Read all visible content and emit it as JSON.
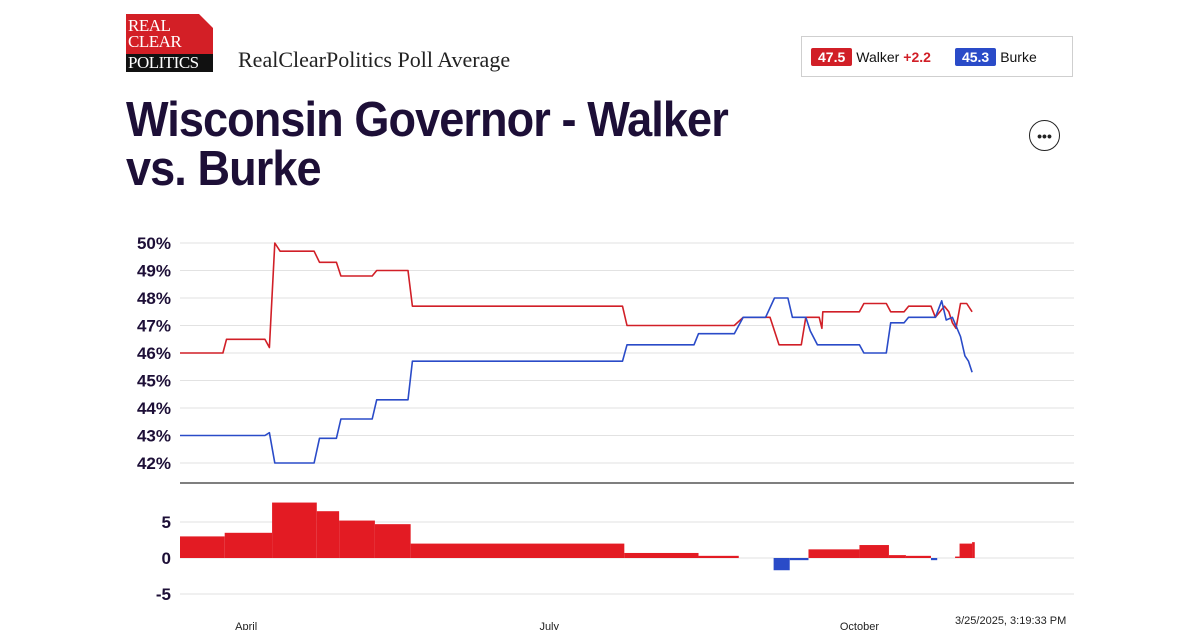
{
  "logo": {
    "line1": "REAL",
    "line2": "CLEAR",
    "line3": "POLITICS"
  },
  "header": {
    "subtitle": "RealClearPolitics Poll Average"
  },
  "legend": {
    "walker_value": "47.5",
    "walker_name": "Walker",
    "walker_spread": "+2.2",
    "burke_value": "45.3",
    "burke_name": "Burke"
  },
  "title": "Wisconsin Governor - Walker vs. Burke",
  "more_icon": "ellipsis-icon",
  "more_label": "•••",
  "timestamp": "3/25/2025, 3:19:33 PM",
  "chart_data": [
    {
      "type": "line",
      "y_tick_labels": [
        "50%",
        "49%",
        "48%",
        "47%",
        "46%",
        "45%",
        "44%",
        "43%",
        "42%"
      ],
      "ylim": [
        42,
        50
      ],
      "xlim": [
        0,
        100
      ],
      "x_tick_labels": [
        {
          "label": "April",
          "x": 7.4
        },
        {
          "label": "July",
          "x": 41.3
        },
        {
          "label": "October",
          "x": 76.0
        }
      ],
      "grid": true,
      "series": [
        {
          "name": "Walker",
          "color": "#d11f27",
          "points": [
            [
              0,
              46.0
            ],
            [
              4.8,
              46.0
            ],
            [
              5.2,
              46.5
            ],
            [
              9.5,
              46.5
            ],
            [
              10.0,
              46.2
            ],
            [
              10.6,
              50.0
            ],
            [
              11.2,
              49.7
            ],
            [
              15.0,
              49.7
            ],
            [
              15.6,
              49.3
            ],
            [
              17.5,
              49.3
            ],
            [
              18.0,
              48.8
            ],
            [
              21.5,
              48.8
            ],
            [
              22.0,
              49.0
            ],
            [
              25.5,
              49.0
            ],
            [
              26.0,
              47.7
            ],
            [
              49.5,
              47.7
            ],
            [
              50.0,
              47.0
            ],
            [
              62.0,
              47.0
            ],
            [
              63.0,
              47.3
            ],
            [
              66.0,
              47.3
            ],
            [
              67.0,
              46.3
            ],
            [
              69.5,
              46.3
            ],
            [
              70.0,
              47.3
            ],
            [
              71.5,
              47.3
            ],
            [
              71.8,
              46.9
            ],
            [
              71.9,
              47.5
            ],
            [
              76.0,
              47.5
            ],
            [
              76.5,
              47.8
            ],
            [
              79.0,
              47.8
            ],
            [
              79.5,
              47.5
            ],
            [
              81.0,
              47.5
            ],
            [
              81.5,
              47.7
            ],
            [
              84.0,
              47.7
            ],
            [
              84.5,
              47.3
            ],
            [
              85.5,
              47.7
            ],
            [
              86.0,
              47.5
            ],
            [
              86.4,
              47.1
            ],
            [
              86.8,
              46.9
            ],
            [
              87.3,
              47.8
            ],
            [
              88.0,
              47.8
            ],
            [
              88.6,
              47.5
            ]
          ]
        },
        {
          "name": "Burke",
          "color": "#2a4bc8",
          "points": [
            [
              0,
              43.0
            ],
            [
              9.5,
              43.0
            ],
            [
              10.0,
              43.1
            ],
            [
              10.6,
              42.0
            ],
            [
              15.0,
              42.0
            ],
            [
              15.6,
              42.9
            ],
            [
              17.5,
              42.9
            ],
            [
              18.0,
              43.6
            ],
            [
              21.5,
              43.6
            ],
            [
              22.0,
              44.3
            ],
            [
              25.5,
              44.3
            ],
            [
              26.0,
              45.7
            ],
            [
              49.5,
              45.7
            ],
            [
              50.0,
              46.3
            ],
            [
              57.5,
              46.3
            ],
            [
              58.0,
              46.7
            ],
            [
              62.0,
              46.7
            ],
            [
              63.0,
              47.3
            ],
            [
              65.5,
              47.3
            ],
            [
              66.5,
              48.0
            ],
            [
              68.0,
              48.0
            ],
            [
              68.5,
              47.3
            ],
            [
              70.0,
              47.3
            ],
            [
              70.5,
              46.8
            ],
            [
              71.3,
              46.3
            ],
            [
              76.0,
              46.3
            ],
            [
              76.5,
              46.0
            ],
            [
              79.0,
              46.0
            ],
            [
              79.5,
              47.1
            ],
            [
              81.0,
              47.1
            ],
            [
              81.5,
              47.3
            ],
            [
              84.5,
              47.3
            ],
            [
              85.2,
              47.9
            ],
            [
              85.7,
              47.2
            ],
            [
              86.4,
              47.3
            ],
            [
              87.3,
              46.6
            ],
            [
              87.8,
              45.9
            ],
            [
              88.2,
              45.7
            ],
            [
              88.6,
              45.3
            ]
          ]
        }
      ]
    },
    {
      "type": "bar",
      "series_note": "spread (Walker minus Burke)",
      "y_tick_labels": [
        "5",
        "0",
        "-5"
      ],
      "ylim": [
        -5,
        7.5
      ],
      "positive_color": "#e31b23",
      "negative_color": "#2a4bc8",
      "segments": [
        {
          "x0": 0,
          "x1": 5.0,
          "value": 3.0
        },
        {
          "x0": 5.0,
          "x1": 10.3,
          "value": 3.5
        },
        {
          "x0": 10.3,
          "x1": 15.3,
          "value": 7.7
        },
        {
          "x0": 15.3,
          "x1": 17.8,
          "value": 6.5
        },
        {
          "x0": 17.8,
          "x1": 21.8,
          "value": 5.2
        },
        {
          "x0": 21.8,
          "x1": 25.8,
          "value": 4.7
        },
        {
          "x0": 25.8,
          "x1": 49.7,
          "value": 2.0
        },
        {
          "x0": 49.7,
          "x1": 58.0,
          "value": 0.7
        },
        {
          "x0": 58.0,
          "x1": 62.5,
          "value": 0.3
        },
        {
          "x0": 66.4,
          "x1": 68.2,
          "value": -1.7
        },
        {
          "x0": 68.2,
          "x1": 70.3,
          "value": -0.3
        },
        {
          "x0": 70.3,
          "x1": 76.0,
          "value": 1.2
        },
        {
          "x0": 76.0,
          "x1": 79.3,
          "value": 1.8
        },
        {
          "x0": 79.3,
          "x1": 81.2,
          "value": 0.4
        },
        {
          "x0": 81.2,
          "x1": 84.0,
          "value": 0.3
        },
        {
          "x0": 84.0,
          "x1": 84.7,
          "value": -0.3
        },
        {
          "x0": 86.7,
          "x1": 87.2,
          "value": 0.2
        },
        {
          "x0": 87.2,
          "x1": 88.6,
          "value": 2.0
        },
        {
          "x0": 88.6,
          "x1": 88.9,
          "value": 2.2
        }
      ]
    }
  ]
}
